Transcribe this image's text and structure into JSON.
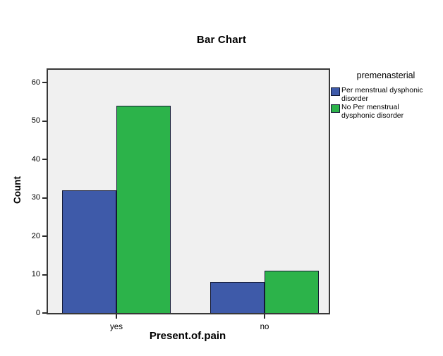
{
  "chart_data": {
    "type": "bar",
    "title": "Bar Chart",
    "categories": [
      "yes",
      "no"
    ],
    "series": [
      {
        "name": "Per menstrual dysphonic disorder",
        "color": "#3E5AA9",
        "values": [
          32,
          8
        ]
      },
      {
        "name": "No Per menstrual dysphonic disorder",
        "color": "#2CB34A",
        "values": [
          54,
          11
        ]
      }
    ],
    "xlabel": "Present.of.pain",
    "ylabel": "Count",
    "ylim": [
      0,
      63
    ],
    "yticks": [
      0,
      10,
      20,
      30,
      40,
      50,
      60
    ],
    "legend_title": "premenasterial",
    "legend_position": "right",
    "grid": false,
    "plot_background": "#F0F0F0",
    "bar_outline_color": "#141A35",
    "text_color": "#000000"
  }
}
